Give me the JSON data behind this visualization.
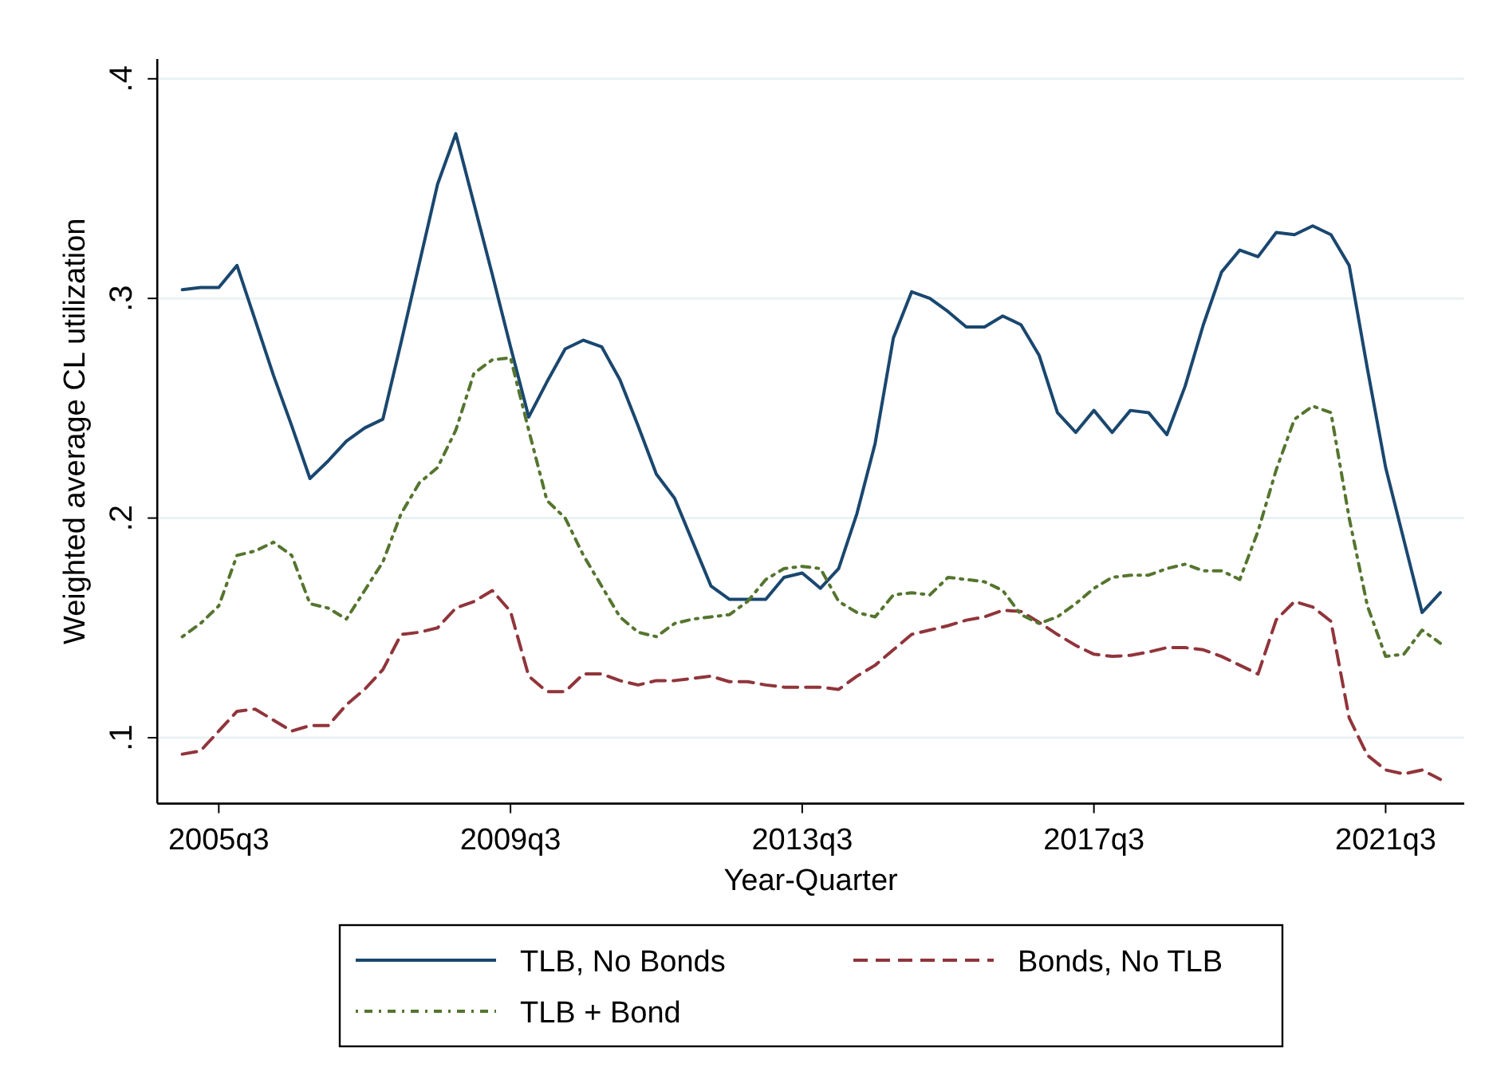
{
  "chart_data": {
    "type": "line",
    "xlabel": "Year-Quarter",
    "ylabel": "Weighted average CL utilization",
    "categories": [
      null,
      null,
      "2005q3",
      null,
      null,
      null,
      null,
      null,
      null,
      null,
      null,
      null,
      null,
      null,
      null,
      null,
      null,
      null,
      "2009q3",
      null,
      null,
      null,
      null,
      null,
      null,
      null,
      null,
      null,
      null,
      null,
      null,
      null,
      null,
      null,
      "2013q3",
      null,
      null,
      null,
      null,
      null,
      null,
      null,
      null,
      null,
      null,
      null,
      null,
      null,
      null,
      null,
      "2017q3",
      null,
      null,
      null,
      null,
      null,
      null,
      null,
      null,
      null,
      null,
      null,
      null,
      null,
      null,
      null,
      "2021q3",
      null,
      null,
      null
    ],
    "series": [
      {
        "name": "TLB, No Bonds",
        "color": "#1a476f",
        "line_style": "solid",
        "values": [
          0.304,
          0.305,
          0.305,
          0.315,
          0.29,
          0.265,
          0.242,
          0.218,
          0.226,
          0.235,
          0.241,
          0.245,
          0.28,
          0.316,
          0.352,
          0.375,
          0.343,
          0.311,
          0.278,
          0.246,
          0.262,
          0.277,
          0.281,
          0.278,
          0.263,
          0.242,
          0.22,
          0.209,
          0.189,
          0.169,
          0.163,
          0.163,
          0.163,
          0.173,
          0.175,
          0.168,
          0.177,
          0.202,
          0.234,
          0.282,
          0.303,
          0.3,
          0.294,
          0.287,
          0.287,
          0.292,
          0.288,
          0.274,
          0.248,
          0.239,
          0.249,
          0.239,
          0.249,
          0.248,
          0.238,
          0.26,
          0.288,
          0.312,
          0.322,
          0.319,
          0.33,
          0.329,
          0.333,
          0.329,
          0.315,
          0.268,
          0.223,
          0.19,
          0.157,
          0.166
        ]
      },
      {
        "name": "Bonds, No TLB",
        "color": "#90353b",
        "line_style": "dashed",
        "values": [
          0.0925,
          0.094,
          0.103,
          0.112,
          0.113,
          0.108,
          0.103,
          0.1055,
          0.1055,
          0.115,
          0.122,
          0.131,
          0.147,
          0.148,
          0.15,
          0.159,
          0.162,
          0.167,
          0.1575,
          0.128,
          0.121,
          0.121,
          0.129,
          0.129,
          0.126,
          0.124,
          0.126,
          0.126,
          0.127,
          0.128,
          0.1255,
          0.1255,
          0.124,
          0.123,
          0.123,
          0.123,
          0.122,
          0.128,
          0.133,
          0.14,
          0.147,
          0.149,
          0.151,
          0.1535,
          0.155,
          0.158,
          0.1575,
          0.1525,
          0.147,
          0.142,
          0.138,
          0.137,
          0.1375,
          0.139,
          0.141,
          0.141,
          0.14,
          0.137,
          0.133,
          0.129,
          0.1537,
          0.162,
          0.1595,
          0.153,
          0.109,
          0.092,
          0.0853,
          0.0835,
          0.0853,
          0.081
        ]
      },
      {
        "name": "TLB + Bond",
        "color": "#55752f",
        "line_style": "dotted",
        "values": [
          0.146,
          0.152,
          0.16,
          0.183,
          0.185,
          0.189,
          0.183,
          0.161,
          0.159,
          0.154,
          0.167,
          0.18,
          0.202,
          0.216,
          0.223,
          0.24,
          0.266,
          0.272,
          0.273,
          0.24,
          0.208,
          0.2,
          0.183,
          0.169,
          0.155,
          0.148,
          0.146,
          0.152,
          0.154,
          0.155,
          0.156,
          0.162,
          0.172,
          0.177,
          0.178,
          0.177,
          0.162,
          0.157,
          0.155,
          0.165,
          0.166,
          0.165,
          0.173,
          0.172,
          0.171,
          0.167,
          0.156,
          0.152,
          0.155,
          0.161,
          0.168,
          0.173,
          0.174,
          0.174,
          0.177,
          0.179,
          0.176,
          0.176,
          0.172,
          0.194,
          0.222,
          0.245,
          0.251,
          0.248,
          0.2,
          0.16,
          0.137,
          0.138,
          0.149,
          0.143
        ]
      }
    ],
    "ylim": [
      0.07,
      0.409
    ],
    "yticks": [
      {
        "value": 0.1,
        "label": ".1"
      },
      {
        "value": 0.2,
        "label": ".2"
      },
      {
        "value": 0.3,
        "label": ".3"
      },
      {
        "value": 0.4,
        "label": ".4"
      }
    ],
    "grid": "y",
    "legend": "bottom",
    "marker": "none"
  }
}
